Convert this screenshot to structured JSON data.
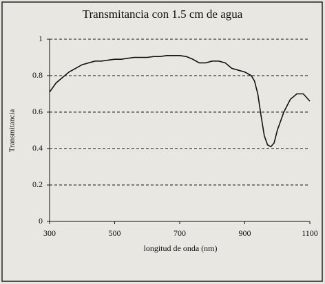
{
  "chart_data": {
    "type": "line",
    "title": "Transmitancia con 1.5 cm de agua",
    "x_label": "longitud de onda (nm)",
    "y_label": "Transmitancia",
    "x": [
      300,
      320,
      340,
      360,
      380,
      400,
      420,
      440,
      460,
      480,
      500,
      520,
      540,
      560,
      580,
      600,
      620,
      640,
      660,
      680,
      700,
      720,
      740,
      760,
      780,
      800,
      820,
      840,
      860,
      880,
      900,
      920,
      930,
      940,
      950,
      960,
      970,
      980,
      990,
      1000,
      1020,
      1040,
      1060,
      1080,
      1100
    ],
    "series": [
      {
        "color": "#111111",
        "values": [
          0.71,
          0.76,
          0.79,
          0.82,
          0.84,
          0.86,
          0.87,
          0.88,
          0.88,
          0.885,
          0.89,
          0.89,
          0.895,
          0.9,
          0.9,
          0.9,
          0.905,
          0.905,
          0.91,
          0.91,
          0.91,
          0.905,
          0.89,
          0.87,
          0.87,
          0.88,
          0.88,
          0.87,
          0.84,
          0.83,
          0.82,
          0.8,
          0.77,
          0.7,
          0.58,
          0.47,
          0.42,
          0.41,
          0.43,
          0.5,
          0.6,
          0.67,
          0.7,
          0.7,
          0.66
        ]
      }
    ],
    "xlim": [
      300,
      1100
    ],
    "xticks": [
      300,
      500,
      700,
      900,
      1100
    ],
    "ylim": [
      0,
      1
    ],
    "yticks": [
      0,
      0.2,
      0.4,
      0.6,
      0.8,
      1
    ],
    "grid": true
  }
}
